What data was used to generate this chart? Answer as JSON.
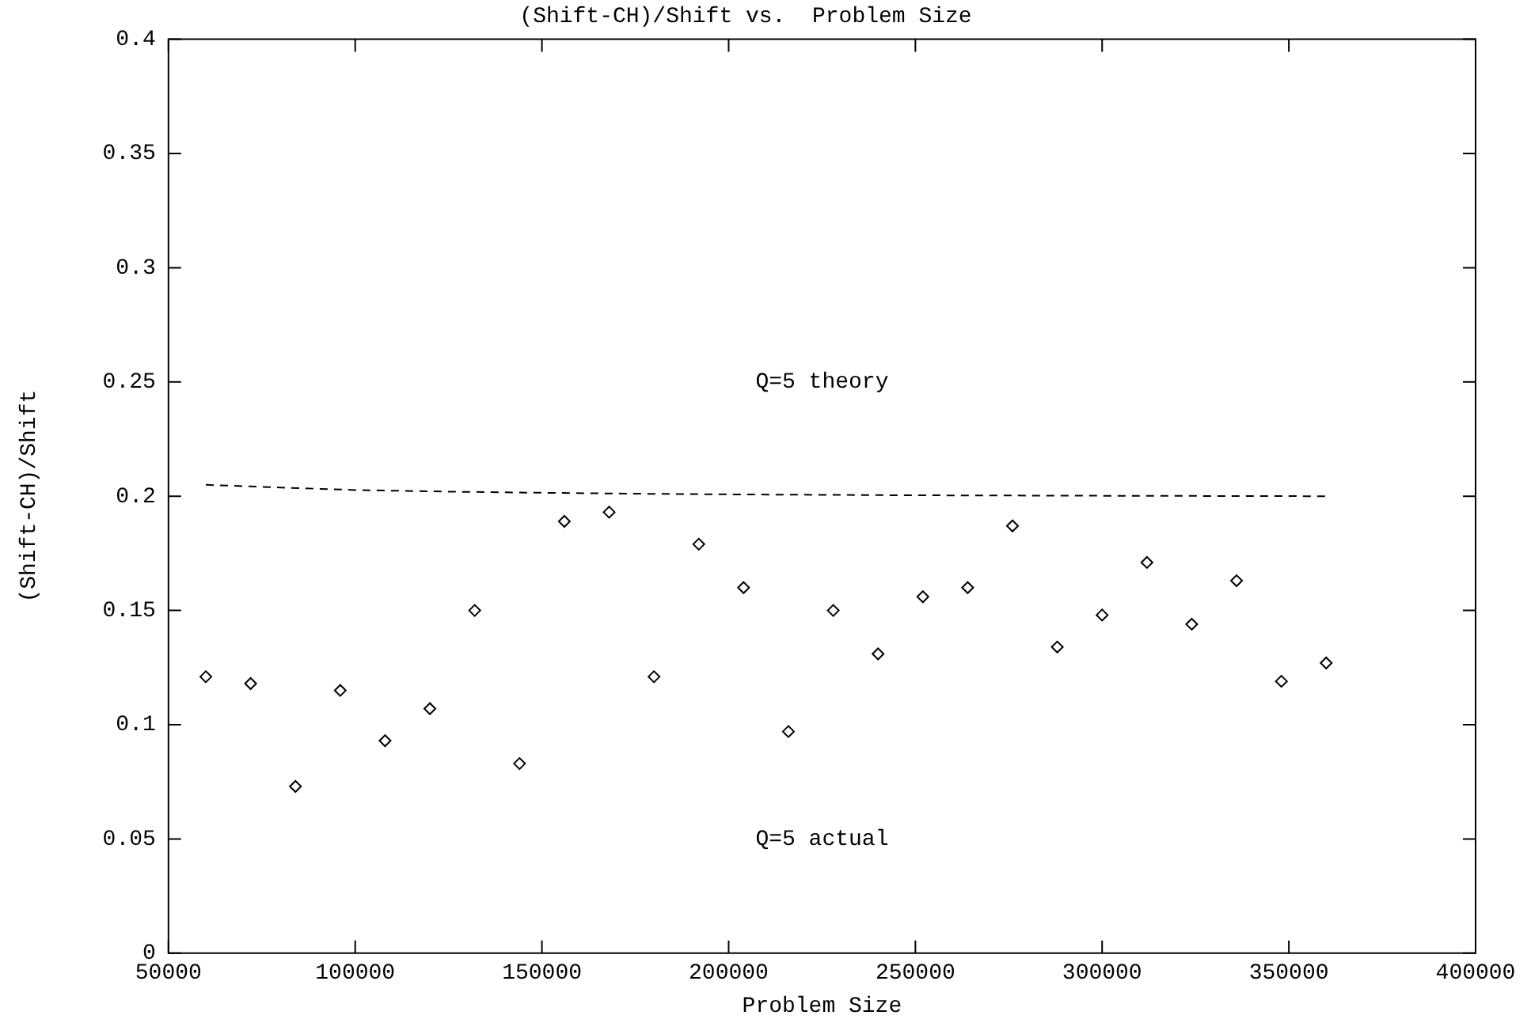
{
  "chart_data": {
    "type": "scatter",
    "title": "(Shift-CH)/Shift vs.  Problem Size",
    "xlabel": "Problem Size",
    "ylabel": "(Shift-CH)/Shift",
    "x": [
      60000,
      72000,
      84000,
      96000,
      108000,
      120000,
      132000,
      144000,
      156000,
      168000,
      180000,
      192000,
      204000,
      216000,
      228000,
      240000,
      252000,
      264000,
      276000,
      288000,
      300000,
      312000,
      324000,
      336000,
      348000,
      360000
    ],
    "series": [
      {
        "color": "#000000",
        "marker": "diamond",
        "values": [
          0.121,
          0.118,
          0.073,
          0.115,
          0.093,
          0.107,
          0.15,
          0.083,
          0.189,
          0.193,
          0.121,
          0.179,
          0.16,
          0.097,
          0.15,
          0.131,
          0.156,
          0.16,
          0.187,
          0.134,
          0.148,
          0.171,
          0.144,
          0.163,
          0.119,
          0.127
        ]
      },
      {
        "type": "line",
        "color": "#000000",
        "marker": "none",
        "line_style": "dashed",
        "x": [
          60000,
          80000,
          100000,
          125000,
          150000,
          175000,
          200000,
          250000,
          300000,
          360000
        ],
        "values": [
          0.205,
          0.2038,
          0.2027,
          0.202,
          0.2015,
          0.2011,
          0.2008,
          0.2004,
          0.2002,
          0.2
        ]
      }
    ],
    "xlim": [
      50000,
      400000
    ],
    "xticks": [
      50000,
      100000,
      150000,
      200000,
      250000,
      300000,
      350000,
      400000
    ],
    "ylim": [
      0,
      0.4
    ],
    "yticks": [
      0,
      0.05,
      0.1,
      0.15,
      0.2,
      0.25,
      0.3,
      0.35,
      0.4
    ],
    "annotations": [
      "Q=5 theory",
      "Q=5 actual"
    ],
    "grid": false,
    "legend": false
  }
}
